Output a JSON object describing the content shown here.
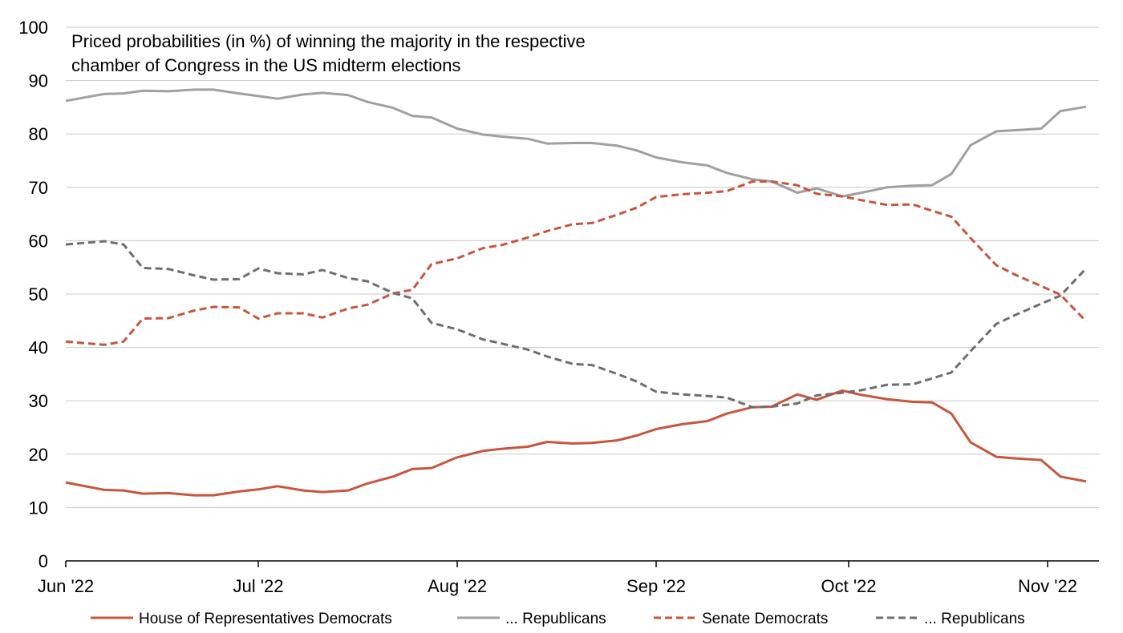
{
  "chart_data": {
    "type": "line",
    "title": "Priced probabilities (in %) of winning the majority in the respective chamber of Congress in the US midterm elections",
    "title_lines": [
      "Priced probabilities (in %) of winning the majority in the respective",
      "chamber of Congress in the US midterm elections"
    ],
    "xlabel": "",
    "ylabel": "",
    "ylim": [
      0,
      100
    ],
    "yticks": [
      0,
      10,
      20,
      30,
      40,
      50,
      60,
      70,
      80,
      90,
      100
    ],
    "xlim": [
      "2022-06-01",
      "2022-11-08"
    ],
    "xticks": [
      {
        "date": "2022-06-01",
        "label": "Jun '22"
      },
      {
        "date": "2022-07-01",
        "label": "Jul '22"
      },
      {
        "date": "2022-08-01",
        "label": "Aug '22"
      },
      {
        "date": "2022-09-01",
        "label": "Sep '22"
      },
      {
        "date": "2022-10-01",
        "label": "Oct '22"
      },
      {
        "date": "2022-11-01",
        "label": "Nov '22"
      }
    ],
    "grid": "horizontal",
    "legend_position": "bottom",
    "x": [
      "2022-06-01",
      "2022-06-07",
      "2022-06-10",
      "2022-06-13",
      "2022-06-17",
      "2022-06-21",
      "2022-06-24",
      "2022-06-28",
      "2022-07-01",
      "2022-07-04",
      "2022-07-08",
      "2022-07-11",
      "2022-07-15",
      "2022-07-18",
      "2022-07-22",
      "2022-07-25",
      "2022-07-28",
      "2022-08-01",
      "2022-08-05",
      "2022-08-08",
      "2022-08-12",
      "2022-08-15",
      "2022-08-19",
      "2022-08-22",
      "2022-08-26",
      "2022-08-29",
      "2022-09-01",
      "2022-09-05",
      "2022-09-09",
      "2022-09-12",
      "2022-09-16",
      "2022-09-19",
      "2022-09-23",
      "2022-09-26",
      "2022-09-30",
      "2022-10-03",
      "2022-10-07",
      "2022-10-11",
      "2022-10-14",
      "2022-10-17",
      "2022-10-20",
      "2022-10-24",
      "2022-10-27",
      "2022-10-31",
      "2022-11-03",
      "2022-11-07"
    ],
    "series": [
      {
        "name": "House of Representatives Democrats",
        "color": "#c8553d",
        "dash": "solid",
        "values": [
          14.7,
          13.3,
          13.2,
          12.6,
          12.7,
          12.3,
          12.3,
          13.0,
          13.4,
          14.0,
          13.2,
          12.9,
          13.2,
          14.5,
          15.8,
          17.2,
          17.4,
          19.4,
          20.6,
          21.0,
          21.4,
          22.3,
          22.0,
          22.1,
          22.6,
          23.5,
          24.7,
          25.6,
          26.2,
          27.6,
          28.8,
          28.9,
          31.2,
          30.2,
          31.9,
          31.1,
          30.3,
          29.8,
          29.7,
          27.6,
          22.2,
          19.5,
          19.2,
          18.9,
          15.8,
          14.9
        ]
      },
      {
        "name": "... Republicans",
        "color": "#a0a0a0",
        "dash": "solid",
        "values": [
          86.2,
          87.5,
          87.6,
          88.1,
          88.0,
          88.3,
          88.3,
          87.6,
          87.1,
          86.6,
          87.4,
          87.7,
          87.3,
          86.0,
          84.9,
          83.4,
          83.1,
          81.0,
          79.9,
          79.5,
          79.1,
          78.2,
          78.3,
          78.3,
          77.8,
          76.9,
          75.6,
          74.7,
          74.1,
          72.7,
          71.5,
          71.1,
          69.0,
          69.8,
          68.3,
          69.0,
          70.0,
          70.3,
          70.4,
          72.5,
          77.9,
          80.5,
          80.7,
          81.0,
          84.3,
          85.1
        ]
      },
      {
        "name": "Senate Democrats",
        "color": "#c8553d",
        "dash": "dashed",
        "values": [
          41.1,
          40.5,
          41.1,
          45.4,
          45.5,
          46.9,
          47.6,
          47.5,
          45.4,
          46.4,
          46.4,
          45.6,
          47.3,
          48.0,
          50.1,
          50.8,
          55.6,
          56.7,
          58.6,
          59.2,
          60.6,
          61.8,
          63.1,
          63.3,
          64.9,
          66.2,
          68.2,
          68.7,
          69.0,
          69.3,
          71.1,
          71.1,
          70.4,
          68.8,
          68.3,
          67.6,
          66.7,
          66.8,
          65.6,
          64.5,
          60.5,
          55.4,
          53.6,
          51.5,
          49.9,
          44.9
        ]
      },
      {
        "name": "... Republicans",
        "color": "#6e6e6e",
        "dash": "dashed",
        "values": [
          59.3,
          59.9,
          59.3,
          54.9,
          54.7,
          53.5,
          52.7,
          52.8,
          54.8,
          53.9,
          53.7,
          54.5,
          53.0,
          52.4,
          50.2,
          49.2,
          44.6,
          43.4,
          41.5,
          40.7,
          39.6,
          38.3,
          36.9,
          36.7,
          35.0,
          33.6,
          31.7,
          31.2,
          30.9,
          30.6,
          28.8,
          28.9,
          29.5,
          31.0,
          31.5,
          32.0,
          33.0,
          33.1,
          34.2,
          35.3,
          39.3,
          44.4,
          46.1,
          48.2,
          49.7,
          54.8
        ]
      }
    ]
  }
}
